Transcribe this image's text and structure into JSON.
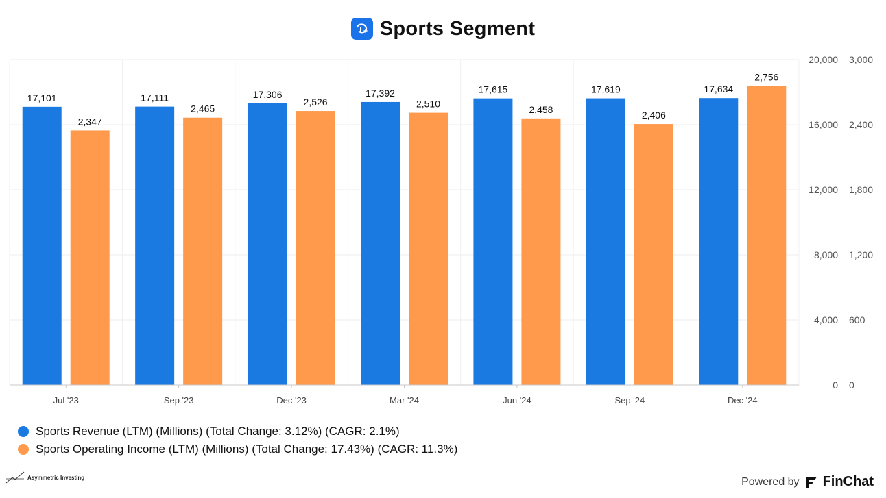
{
  "header": {
    "title": "Sports Segment",
    "logo_icon": "disney-plus-logo-icon"
  },
  "colors": {
    "revenue": "#1a7ae2",
    "operating_income": "#ff9a4d",
    "badge": "#1a73e8"
  },
  "chart_data": {
    "type": "bar",
    "categories": [
      "Jul '23",
      "Sep '23",
      "Dec '23",
      "Mar '24",
      "Jun '24",
      "Sep '24",
      "Dec '24"
    ],
    "series": [
      {
        "name": "Sports Revenue (LTM) (Millions)",
        "axis": "left",
        "values": [
          17101,
          17111,
          17306,
          17392,
          17615,
          17619,
          17634
        ],
        "labels": [
          "17,101",
          "17,111",
          "17,306",
          "17,392",
          "17,615",
          "17,619",
          "17,634"
        ]
      },
      {
        "name": "Sports Operating Income (LTM) (Millions)",
        "axis": "right",
        "values": [
          2347,
          2465,
          2526,
          2510,
          2458,
          2406,
          2756
        ],
        "labels": [
          "2,347",
          "2,465",
          "2,526",
          "2,510",
          "2,458",
          "2,406",
          "2,756"
        ]
      }
    ],
    "y_left": {
      "min": 0,
      "max": 20000,
      "ticks": [
        "0",
        "4,000",
        "8,000",
        "12,000",
        "16,000",
        "20,000"
      ],
      "tick_values": [
        0,
        4000,
        8000,
        12000,
        16000,
        20000
      ]
    },
    "y_right": {
      "min": 0,
      "max": 3000,
      "ticks": [
        "0",
        "600",
        "1,200",
        "1,800",
        "2,400",
        "3,000"
      ],
      "tick_values": [
        0,
        600,
        1200,
        1800,
        2400,
        3000
      ]
    },
    "grid": true,
    "legend_position": "bottom-left"
  },
  "legend": {
    "items": [
      {
        "label": "Sports Revenue (LTM) (Millions) (Total Change: 3.12%) (CAGR: 2.1%)"
      },
      {
        "label": "Sports Operating Income (LTM) (Millions) (Total Change: 17.43%) (CAGR: 11.3%)"
      }
    ]
  },
  "footer": {
    "left_brand": "Asymmetric Investing",
    "powered_by": "Powered by",
    "right_brand": "FinChat"
  }
}
